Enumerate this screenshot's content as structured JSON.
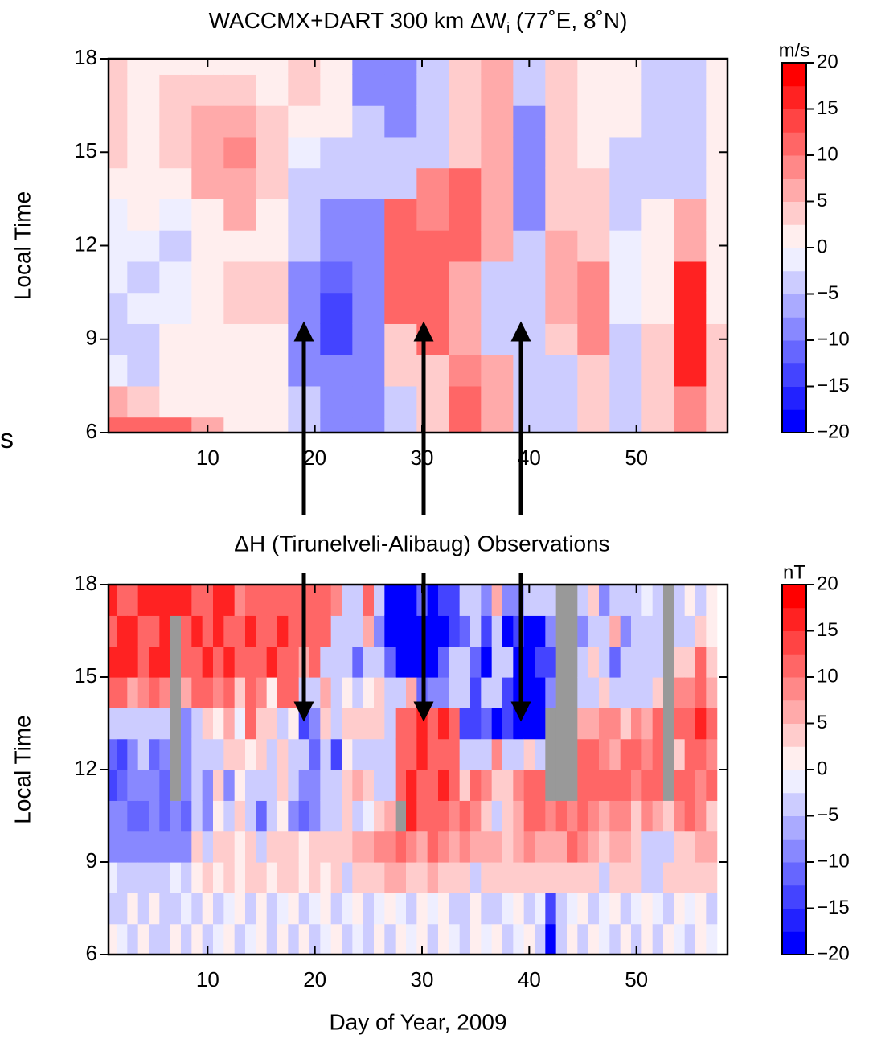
{
  "annotation_left": "s",
  "middle_title": "ΔH (Tirunelveli-Alibaug) Observations",
  "chart_data": [
    {
      "type": "heatmap",
      "title": [
        "WACCMX+DART 300 km ΔW",
        "i",
        " (77˚E, 8˚N)"
      ],
      "ylabel": "Local Time",
      "xlim": [
        0.75,
        58.5
      ],
      "xticks": [
        10,
        20,
        30,
        40,
        50
      ],
      "ylim": [
        6,
        18
      ],
      "yticks": [
        6,
        9,
        12,
        15,
        18
      ],
      "colormap": {
        "negative": "#0000ff",
        "middle": "#ffffff",
        "positive": "#ff0000"
      },
      "missing_color": "#999999",
      "colorbar": {
        "label": "m/s",
        "clim": [
          -20,
          20
        ],
        "color_step": 2.5,
        "ticks": [
          20,
          15,
          10,
          5,
          0,
          {
            "value": -5,
            "label": "−5"
          },
          {
            "value": -10,
            "label": "−10"
          },
          {
            "value": -15,
            "label": "−15"
          },
          {
            "value": -20,
            "label": "−20"
          }
        ]
      },
      "x": [
        1,
        4,
        7,
        10,
        13,
        16,
        19,
        22,
        25,
        28,
        31,
        34,
        37,
        40,
        43,
        46,
        49,
        52,
        55,
        58
      ],
      "y": [
        6,
        7,
        8,
        9,
        10,
        11,
        12,
        13,
        14,
        15,
        16,
        17,
        18
      ],
      "values": [
        [
          12,
          5,
          -2,
          -3,
          -3,
          -2,
          -2,
          -1,
          0,
          3,
          3,
          3,
          3
        ],
        [
          10,
          3,
          -3,
          -3,
          -2,
          -3,
          -2,
          0,
          2,
          2,
          2,
          2,
          2
        ],
        [
          10,
          2,
          0,
          0,
          -2,
          -2,
          -3,
          -1,
          2,
          3,
          3,
          3,
          2
        ],
        [
          5,
          2,
          2,
          2,
          1,
          0,
          0,
          2,
          5,
          7,
          7,
          3,
          2
        ],
        [
          2,
          2,
          2,
          2,
          3,
          3,
          2,
          5,
          7,
          8,
          5,
          3,
          2
        ],
        [
          2,
          2,
          1,
          2,
          3,
          3,
          2,
          2,
          3,
          3,
          3,
          2,
          2
        ],
        [
          -5,
          -5,
          -8,
          -10,
          -10,
          -10,
          -5,
          -3,
          -3,
          -2,
          2,
          3,
          3
        ],
        [
          -8,
          -8,
          -10,
          -13,
          -13,
          -12,
          -8,
          -8,
          -3,
          -3,
          2,
          2,
          2
        ],
        [
          -8,
          -8,
          -8,
          -10,
          -8,
          -8,
          -8,
          -8,
          -5,
          -5,
          -5,
          -8,
          -8
        ],
        [
          -3,
          -3,
          3,
          3,
          10,
          10,
          10,
          10,
          -3,
          -3,
          -10,
          -10,
          -8
        ],
        [
          3,
          3,
          3,
          12,
          12,
          12,
          12,
          8,
          8,
          -3,
          -3,
          -3,
          -3
        ],
        [
          10,
          10,
          8,
          5,
          5,
          5,
          10,
          10,
          10,
          3,
          3,
          3,
          3
        ],
        [
          5,
          5,
          5,
          -3,
          -3,
          -3,
          5,
          5,
          5,
          5,
          5,
          5,
          5
        ],
        [
          -5,
          -5,
          -5,
          -5,
          -5,
          -5,
          -5,
          -8,
          -8,
          -8,
          -8,
          -3,
          -3
        ],
        [
          -3,
          -3,
          -3,
          3,
          5,
          5,
          5,
          3,
          3,
          3,
          3,
          3,
          3
        ],
        [
          3,
          3,
          3,
          8,
          8,
          8,
          3,
          3,
          3,
          2,
          2,
          2,
          2
        ],
        [
          -3,
          -3,
          -3,
          -3,
          -2,
          -2,
          -2,
          -3,
          -3,
          -3,
          2,
          2,
          2
        ],
        [
          3,
          3,
          3,
          3,
          2,
          2,
          2,
          2,
          -3,
          -3,
          -3,
          -3,
          -3
        ],
        [
          8,
          8,
          15,
          15,
          15,
          15,
          5,
          5,
          -3,
          -3,
          -3,
          -3,
          -3
        ],
        [
          3,
          3,
          3,
          3,
          2,
          2,
          2,
          2,
          2,
          2,
          2,
          2,
          2
        ]
      ]
    },
    {
      "type": "heatmap",
      "ylabel": "Local Time",
      "xlabel": "Day of Year, 2009",
      "xlim": [
        0.75,
        58.5
      ],
      "xticks": [
        10,
        20,
        30,
        40,
        50
      ],
      "ylim": [
        6,
        18
      ],
      "yticks": [
        6,
        9,
        12,
        15,
        18
      ],
      "colormap": {
        "negative": "#0000ff",
        "middle": "#ffffff",
        "positive": "#ff0000"
      },
      "missing_color": "#999999",
      "colorbar": {
        "label": "nT",
        "clim": [
          -20,
          20
        ],
        "color_step": 2.5,
        "ticks": [
          20,
          15,
          10,
          5,
          0,
          {
            "value": -5,
            "label": "−5"
          },
          {
            "value": -10,
            "label": "−10"
          },
          {
            "value": -15,
            "label": "−15"
          },
          {
            "value": -20,
            "label": "−20"
          }
        ]
      },
      "x": [
        1,
        2,
        3,
        4,
        5,
        6,
        7,
        8,
        9,
        10,
        11,
        12,
        13,
        14,
        15,
        16,
        17,
        18,
        19,
        20,
        21,
        22,
        23,
        24,
        25,
        26,
        27,
        28,
        29,
        30,
        31,
        32,
        33,
        34,
        35,
        36,
        37,
        38,
        39,
        40,
        41,
        42,
        43,
        44,
        45,
        46,
        47,
        48,
        49,
        50,
        51,
        52,
        53,
        54,
        55,
        56,
        57
      ],
      "y": [
        6.5,
        7.5,
        8.5,
        9.5,
        10.5,
        11.5,
        12.5,
        13.5,
        14.5,
        15.5,
        16.5,
        17.5
      ],
      "values": [
        [
          0,
          -3,
          -2,
          -8,
          -10,
          -15,
          -12,
          -3,
          10,
          15,
          12,
          15
        ],
        [
          -2,
          -3,
          -3,
          -8,
          -10,
          -12,
          -15,
          -5,
          12,
          15,
          15,
          10
        ],
        [
          -3,
          0,
          -3,
          -8,
          -12,
          -10,
          -8,
          -3,
          5,
          15,
          15,
          12
        ],
        [
          0,
          -3,
          -5,
          -8,
          -12,
          -10,
          -5,
          -3,
          8,
          10,
          12,
          15
        ],
        [
          -3,
          0,
          -3,
          -8,
          -10,
          -8,
          -12,
          -3,
          10,
          15,
          12,
          15
        ],
        [
          -3,
          -3,
          -3,
          -8,
          -12,
          -12,
          -10,
          -5,
          8,
          15,
          15,
          17
        ],
        [
          0,
          -3,
          -2,
          -8,
          -10,
          null,
          null,
          null,
          null,
          null,
          null,
          15
        ],
        [
          -3,
          -2,
          -3,
          -8,
          -12,
          -10,
          -8,
          -10,
          5,
          12,
          12,
          17
        ],
        [
          0,
          -3,
          2,
          3,
          -3,
          -3,
          -5,
          -3,
          10,
          12,
          15,
          10
        ],
        [
          -3,
          0,
          3,
          -3,
          -8,
          -10,
          -3,
          3,
          10,
          15,
          10,
          12
        ],
        [
          -2,
          -3,
          2,
          3,
          0,
          3,
          -3,
          0,
          8,
          12,
          15,
          17
        ],
        [
          0,
          -2,
          3,
          3,
          -3,
          -8,
          3,
          5,
          10,
          15,
          12,
          15
        ],
        [
          -3,
          0,
          2,
          0,
          3,
          0,
          3,
          -2,
          3,
          12,
          10,
          8
        ],
        [
          -2,
          -3,
          3,
          3,
          -5,
          -3,
          2,
          12,
          12,
          10,
          15,
          12
        ],
        [
          0,
          0,
          3,
          -3,
          -12,
          -3,
          3,
          3,
          8,
          12,
          10,
          12
        ],
        [
          -3,
          -3,
          2,
          3,
          -3,
          -3,
          -5,
          3,
          0,
          15,
          12,
          12
        ],
        [
          0,
          -2,
          3,
          3,
          0,
          3,
          3,
          -3,
          12,
          12,
          15,
          12
        ],
        [
          -3,
          0,
          3,
          3,
          -8,
          -5,
          -3,
          2,
          10,
          10,
          12,
          12
        ],
        [
          0,
          -3,
          2,
          0,
          -12,
          -10,
          -3,
          -15,
          -5,
          5,
          12,
          12
        ],
        [
          -3,
          -2,
          3,
          3,
          -8,
          -10,
          -12,
          -8,
          -3,
          12,
          10,
          12
        ],
        [
          -2,
          0,
          2,
          3,
          -5,
          -5,
          -3,
          3,
          5,
          -5,
          10,
          12
        ],
        [
          0,
          -3,
          3,
          3,
          -3,
          -3,
          -15,
          -3,
          -5,
          -3,
          -5,
          8
        ],
        [
          -3,
          -2,
          -3,
          3,
          3,
          3,
          0,
          3,
          0,
          -3,
          -5,
          -3
        ],
        [
          -2,
          0,
          3,
          5,
          -3,
          5,
          -3,
          3,
          -3,
          -12,
          -5,
          -5
        ],
        [
          -3,
          -3,
          3,
          5,
          -2,
          3,
          -3,
          3,
          0,
          -3,
          5,
          10
        ],
        [
          0,
          -2,
          3,
          8,
          3,
          -3,
          -3,
          3,
          3,
          -5,
          -10,
          -5
        ],
        [
          -3,
          0,
          5,
          8,
          5,
          -3,
          -3,
          -3,
          -3,
          -12,
          -18,
          -18
        ],
        [
          0,
          -2,
          5,
          10,
          null,
          12,
          10,
          12,
          -5,
          -18,
          -18,
          -18
        ],
        [
          -2,
          -3,
          3,
          8,
          15,
          15,
          12,
          10,
          5,
          -18,
          -18,
          -18
        ],
        [
          0,
          0,
          3,
          5,
          12,
          12,
          15,
          15,
          -12,
          -18,
          -18,
          -12
        ],
        [
          -3,
          -2,
          5,
          10,
          12,
          10,
          12,
          12,
          -10,
          -18,
          -18,
          -18
        ],
        [
          0,
          0,
          3,
          8,
          10,
          15,
          12,
          15,
          -10,
          -12,
          -18,
          -15
        ],
        [
          -2,
          -5,
          3,
          5,
          8,
          12,
          12,
          12,
          -5,
          -3,
          -15,
          -15
        ],
        [
          -3,
          -3,
          3,
          8,
          10,
          3,
          -3,
          -15,
          -5,
          -5,
          -12,
          -5
        ],
        [
          0,
          0,
          -5,
          5,
          8,
          10,
          -5,
          -15,
          -15,
          -12,
          -5,
          -3
        ],
        [
          -2,
          -3,
          3,
          5,
          3,
          8,
          -3,
          -12,
          -3,
          -18,
          -15,
          -8
        ],
        [
          0,
          -3,
          3,
          5,
          -5,
          3,
          8,
          -18,
          -5,
          -3,
          -3,
          5
        ],
        [
          -3,
          -2,
          3,
          3,
          3,
          3,
          -3,
          -15,
          -15,
          -3,
          -18,
          -10
        ],
        [
          -2,
          0,
          3,
          5,
          5,
          8,
          -3,
          -18,
          -18,
          -18,
          -15,
          -8
        ],
        [
          0,
          -3,
          3,
          8,
          12,
          12,
          3,
          -18,
          -18,
          -18,
          -18,
          -5
        ],
        [
          -3,
          -2,
          3,
          5,
          10,
          12,
          -3,
          -18,
          -18,
          -15,
          -18,
          -3
        ],
        [
          -18,
          -15,
          3,
          5,
          8,
          null,
          null,
          null,
          -10,
          -15,
          -8,
          -5
        ],
        [
          -3,
          -3,
          3,
          5,
          10,
          null,
          null,
          null,
          null,
          null,
          null,
          null
        ],
        [
          0,
          -2,
          3,
          10,
          8,
          null,
          null,
          null,
          null,
          null,
          null,
          null
        ],
        [
          -3,
          0,
          3,
          8,
          12,
          10,
          12,
          5,
          -3,
          -3,
          -8,
          -3
        ],
        [
          0,
          -3,
          3,
          5,
          8,
          10,
          12,
          5,
          -3,
          3,
          -3,
          3
        ],
        [
          -2,
          -2,
          -3,
          3,
          5,
          12,
          8,
          8,
          3,
          -5,
          -3,
          -8
        ],
        [
          -3,
          0,
          3,
          5,
          8,
          10,
          5,
          8,
          -3,
          -12,
          5,
          -3
        ],
        [
          0,
          -3,
          3,
          5,
          8,
          10,
          12,
          3,
          -3,
          -5,
          -8,
          -5
        ],
        [
          -3,
          -2,
          3,
          3,
          3,
          8,
          10,
          8,
          -3,
          -3,
          -3,
          -3
        ],
        [
          0,
          0,
          -3,
          -3,
          8,
          12,
          8,
          5,
          -3,
          -5,
          -3,
          -2
        ],
        [
          -3,
          -2,
          -3,
          -3,
          5,
          10,
          12,
          10,
          3,
          -5,
          -3,
          -3
        ],
        [
          0,
          -3,
          3,
          -5,
          3,
          null,
          null,
          null,
          null,
          null,
          null,
          null
        ],
        [
          -2,
          0,
          3,
          3,
          8,
          10,
          3,
          12,
          8,
          3,
          -3,
          -3
        ],
        [
          -3,
          -2,
          3,
          3,
          10,
          12,
          10,
          12,
          8,
          3,
          -3,
          0
        ],
        [
          0,
          0,
          3,
          5,
          8,
          8,
          12,
          15,
          10,
          10,
          3,
          -3
        ],
        [
          -2,
          -3,
          3,
          5,
          3,
          10,
          8,
          10,
          5,
          3,
          0,
          0
        ]
      ]
    }
  ]
}
